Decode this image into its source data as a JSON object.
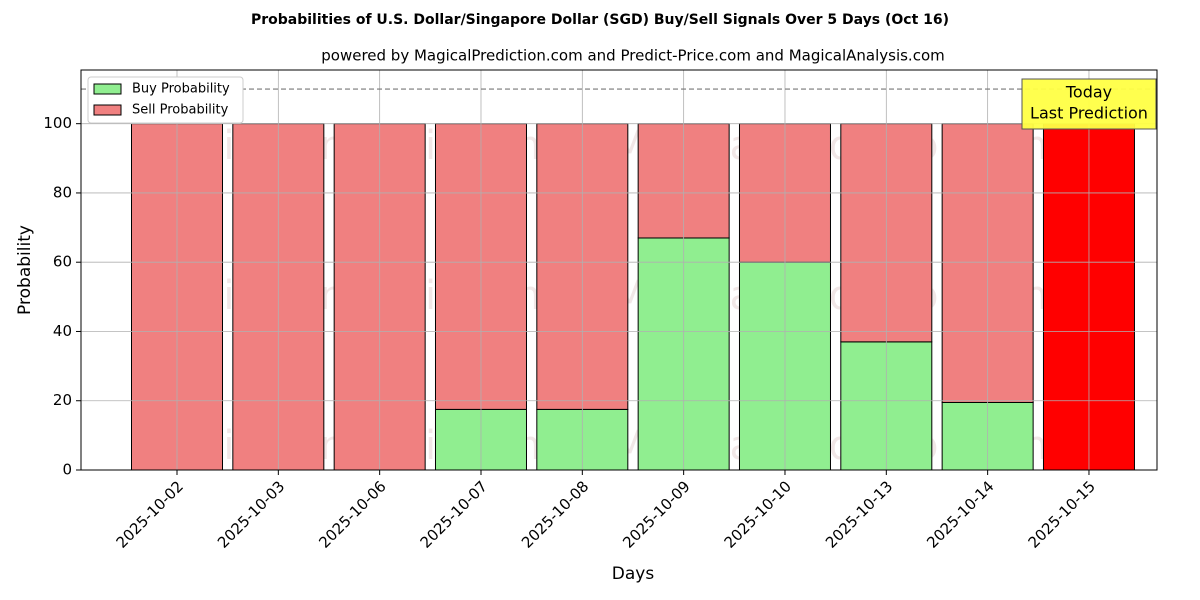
{
  "chart_data": {
    "type": "stacked_bar",
    "title": "Probabilities of U.S. Dollar/Singapore Dollar (SGD) Buy/Sell Signals Over 5 Days (Oct 16)",
    "subtitle": "powered by MagicalPrediction.com and Predict-Price.com and MagicalAnalysis.com",
    "x_label": "Days",
    "y_label": "Probability",
    "categories": [
      "2025-10-02",
      "2025-10-03",
      "2025-10-06",
      "2025-10-07",
      "2025-10-08",
      "2025-10-09",
      "2025-10-10",
      "2025-10-13",
      "2025-10-14",
      "2025-10-15"
    ],
    "series": [
      {
        "name": "Buy Probability",
        "color": "#90ee90",
        "values": [
          0,
          0,
          0,
          17.5,
          17.5,
          67,
          60,
          37,
          19.5,
          0
        ]
      },
      {
        "name": "Sell Probability",
        "color": "#f08080",
        "values": [
          100,
          100,
          100,
          82.5,
          82.5,
          33,
          40,
          63,
          80.5,
          100
        ],
        "colors": [
          "#f08080",
          "#f08080",
          "#f08080",
          "#f08080",
          "#f08080",
          "#f08080",
          "#f08080",
          "#f08080",
          "#f08080",
          "#ff0000"
        ]
      }
    ],
    "ylim": [
      0,
      115.5
    ],
    "yticks": [
      0,
      20,
      40,
      60,
      80,
      100
    ],
    "grid": true,
    "legend": "upper-left",
    "reference_line": 110,
    "annotation": [
      "Today",
      "Last Prediction"
    ],
    "watermarks": [
      "MagicalAnalysis.com",
      "MagicalPrediction.com"
    ]
  }
}
